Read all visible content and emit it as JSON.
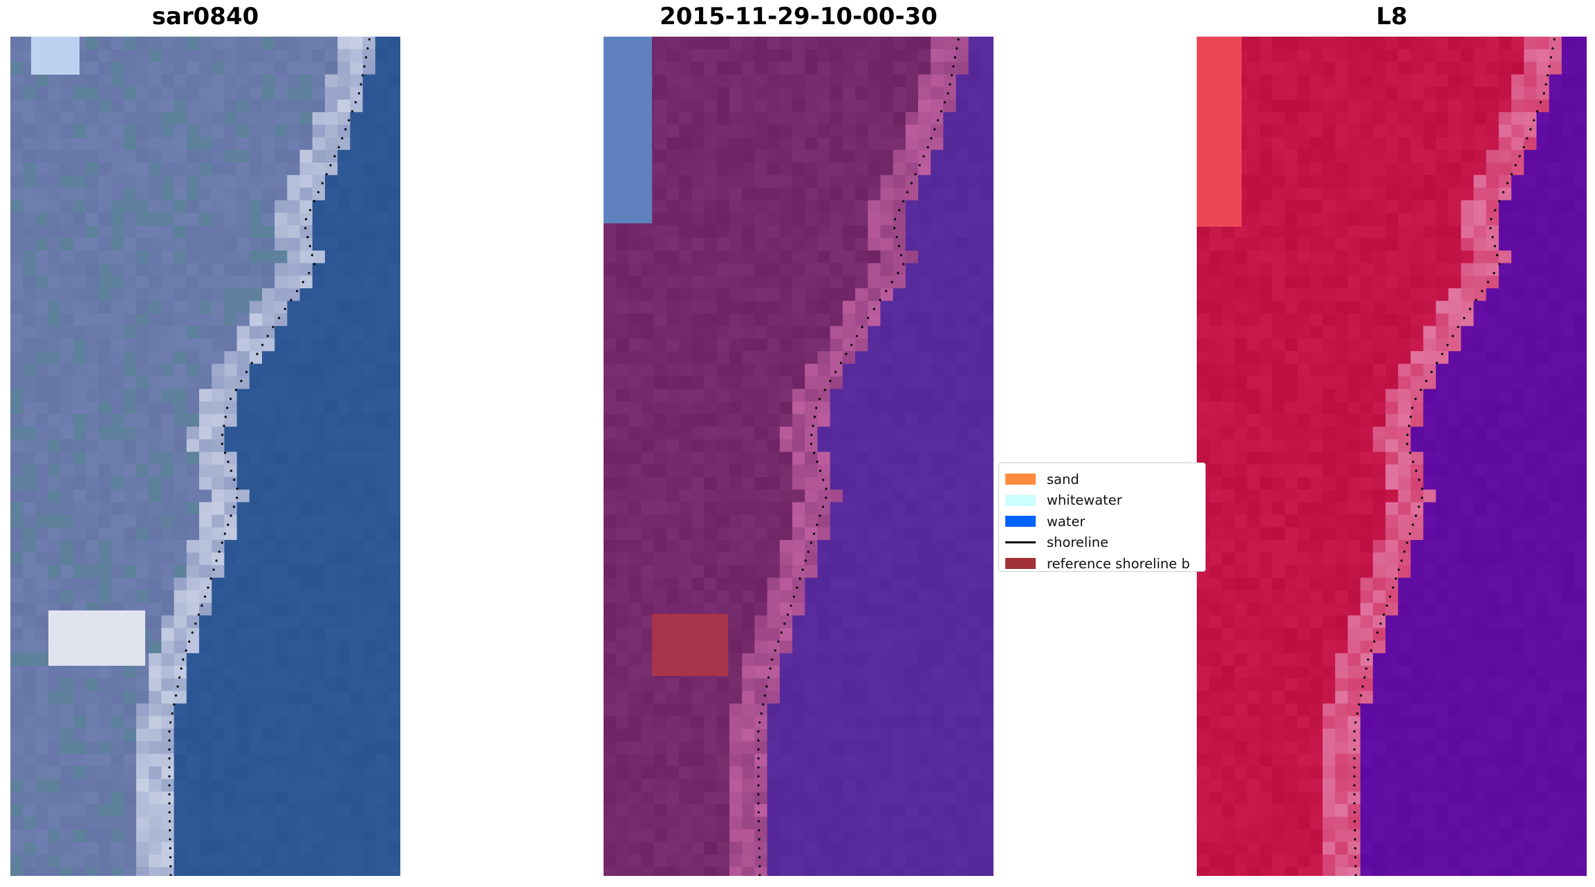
{
  "panels": [
    {
      "title": "sar0840",
      "palette": "rgb",
      "base": "#6f7fb0",
      "sea": "#2a5592"
    },
    {
      "title": "2015-11-29-10-00-30",
      "palette": "classified",
      "base": "#7a2f70",
      "sea": "#55289a"
    },
    {
      "title": "L8",
      "palette": "ndwi",
      "base": "#c91a4e",
      "sea": "#5e0aa0"
    }
  ],
  "legend": {
    "items": [
      {
        "label": "sand",
        "color": "#ff8c3c",
        "kind": "patch"
      },
      {
        "label": "whitewater",
        "color": "#ccffff",
        "kind": "patch"
      },
      {
        "label": "water",
        "color": "#0063ff",
        "kind": "patch"
      },
      {
        "label": "shoreline",
        "color": "#000000",
        "kind": "line"
      },
      {
        "label": "reference shoreline b",
        "color": "#a33236",
        "kind": "patch"
      }
    ]
  }
}
